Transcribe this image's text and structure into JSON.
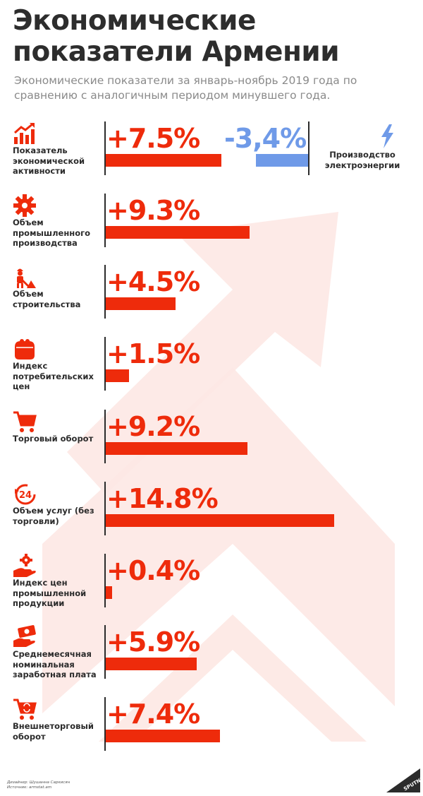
{
  "title": "Экономические показатели Армении",
  "subtitle": "Экономические показатели за январь-ноябрь 2019 года по сравнению с аналогичным периодом минувшего года.",
  "colors": {
    "accent": "#ee2b0b",
    "negative": "#6f9ae8",
    "background_arrow": "#fde8e4",
    "text": "#2b2b2b",
    "muted": "#8a8a8a"
  },
  "chart_data": {
    "type": "bar",
    "orientation": "horizontal",
    "unit": "%",
    "xlim": [
      0,
      15
    ],
    "categories": [
      "Показатель экономической активности",
      "Объем промышленного производства",
      "Объем строительства",
      "Индекс потребительских цен",
      "Торговый оборот",
      "Объем услуг (без торговли)",
      "Индекс цен промышленной продукции",
      "Среднемесячная номинальная заработная плата",
      "Внешнеторговый оборот"
    ],
    "values": [
      7.5,
      9.3,
      4.5,
      1.5,
      9.2,
      14.8,
      0.4,
      5.9,
      7.4
    ],
    "value_labels": [
      "+7.5%",
      "+9.3%",
      "+4.5%",
      "+1.5%",
      "+9.2%",
      "+14.8%",
      "+0.4%",
      "+5.9%",
      "+7.4%"
    ],
    "icons": [
      "growth-chart-icon",
      "gear-icon",
      "construction-worker-icon",
      "wallet-icon",
      "shopping-cart-icon",
      "24-hours-icon",
      "hand-gear-icon",
      "money-hand-icon",
      "cart-exchange-icon"
    ],
    "extra_series": {
      "name": "Производство электроэнергии",
      "value": -3.4,
      "value_label": "-3,4%",
      "icon": "lightning-icon"
    }
  },
  "footer": {
    "designer": "Дизайнер: Шушанна Саркисян",
    "source": "Источник: armstat.am"
  },
  "logo_text": "SPUTNIK"
}
